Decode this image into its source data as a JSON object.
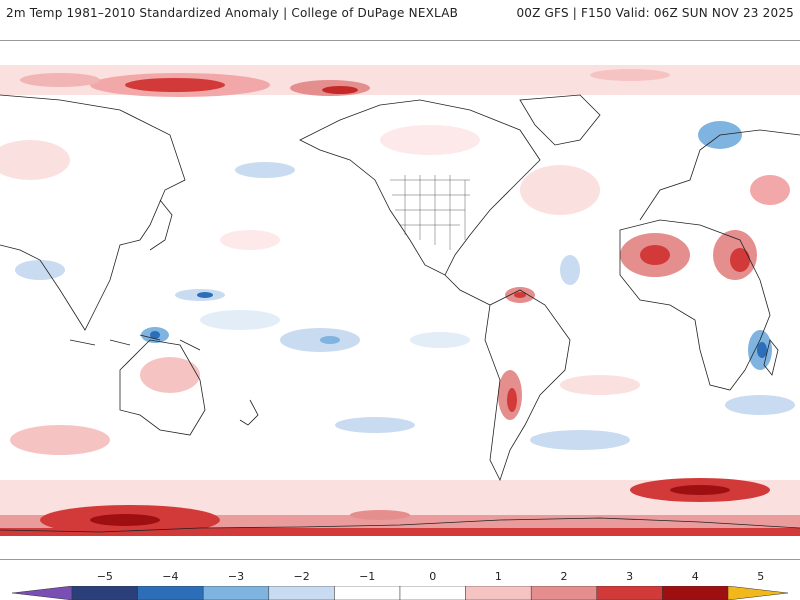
{
  "header": {
    "title": "2m Temp 1981–2010 Standardized Anomaly | College of DuPage NEXLAB",
    "run_info": "00Z GFS | F150 Valid: 06Z SUN NOV 23 2025"
  },
  "map": {
    "projection": "equirectangular",
    "center_longitude": 180
  },
  "colorbar": {
    "ticks": [
      "−5",
      "−4",
      "−3",
      "−2",
      "−1",
      "0",
      "1",
      "2",
      "3",
      "4",
      "5"
    ],
    "colors": [
      "#7a4fb3",
      "#2b3f7a",
      "#2c6fb8",
      "#7fb3e0",
      "#c9dbf1",
      "#ffffff",
      "#ffffff",
      "#f6c3c3",
      "#e58e8e",
      "#d23a3a",
      "#9e0f12",
      "#f2b81b"
    ]
  }
}
